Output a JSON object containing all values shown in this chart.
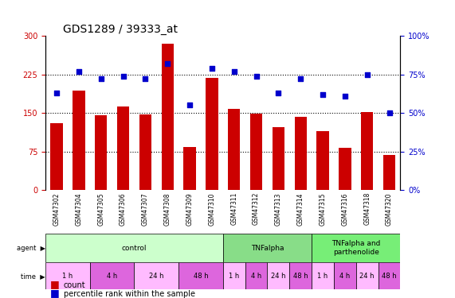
{
  "title": "GDS1289 / 39333_at",
  "samples": [
    "GSM47302",
    "GSM47304",
    "GSM47305",
    "GSM47306",
    "GSM47307",
    "GSM47308",
    "GSM47309",
    "GSM47310",
    "GSM47311",
    "GSM47312",
    "GSM47313",
    "GSM47314",
    "GSM47315",
    "GSM47316",
    "GSM47318",
    "GSM47320"
  ],
  "counts": [
    130,
    193,
    145,
    162,
    147,
    285,
    84,
    218,
    158,
    148,
    122,
    142,
    114,
    83,
    152,
    68
  ],
  "percentiles": [
    63,
    77,
    72,
    74,
    72,
    82,
    55,
    79,
    77,
    74,
    63,
    72,
    62,
    61,
    75,
    50
  ],
  "ylim_left": [
    0,
    300
  ],
  "ylim_right": [
    0,
    100
  ],
  "yticks_left": [
    0,
    75,
    150,
    225,
    300
  ],
  "yticks_right": [
    0,
    25,
    50,
    75,
    100
  ],
  "bar_color": "#cc0000",
  "dot_color": "#0000cc",
  "grid_color": "#000000",
  "agents": [
    {
      "label": "control",
      "start": 0,
      "end": 8,
      "color": "#ccffcc"
    },
    {
      "label": "TNFalpha",
      "start": 8,
      "end": 12,
      "color": "#66cc66"
    },
    {
      "label": "TNFalpha and\nparthenolide",
      "start": 12,
      "end": 16,
      "color": "#66ff66"
    }
  ],
  "times_control": [
    {
      "label": "1 h",
      "start": 0,
      "end": 2,
      "color": "#ffaaff"
    },
    {
      "label": "4 h",
      "start": 2,
      "end": 4,
      "color": "#ee77ee"
    },
    {
      "label": "24 h",
      "start": 4,
      "end": 6,
      "color": "#ffaaff"
    },
    {
      "label": "48 h",
      "start": 6,
      "end": 8,
      "color": "#ee77ee"
    }
  ],
  "times_tnf": [
    {
      "label": "1 h",
      "start": 8,
      "end": 9,
      "color": "#ffaaff"
    },
    {
      "label": "4 h",
      "start": 9,
      "end": 10,
      "color": "#ee77ee"
    },
    {
      "label": "24 h",
      "start": 10,
      "end": 11,
      "color": "#ffaaff"
    },
    {
      "label": "48 h",
      "start": 11,
      "end": 12,
      "color": "#ee77ee"
    }
  ],
  "times_tnfp": [
    {
      "label": "1 h",
      "start": 12,
      "end": 13,
      "color": "#ffaaff"
    },
    {
      "label": "4 h",
      "start": 13,
      "end": 14,
      "color": "#ee77ee"
    },
    {
      "label": "24 h",
      "start": 14,
      "end": 15,
      "color": "#ffaaff"
    },
    {
      "label": "48 h",
      "start": 15,
      "end": 16,
      "color": "#ee77ee"
    }
  ],
  "legend_count_color": "#cc0000",
  "legend_pct_color": "#0000cc",
  "bg_color": "#ffffff",
  "xlabel_color": "#cc0000",
  "ylabel_right_color": "#0000cc"
}
